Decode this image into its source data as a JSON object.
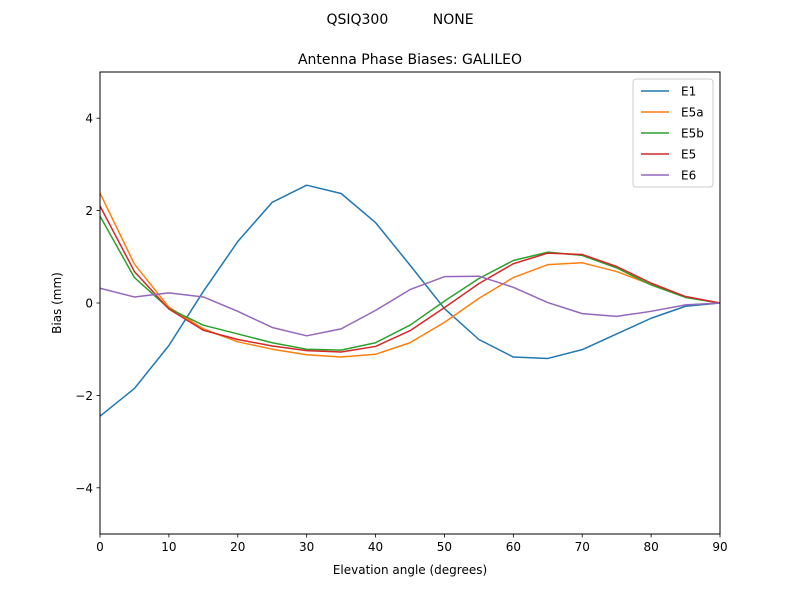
{
  "header": {
    "suptitle": "QSIQ300          NONE"
  },
  "chart_data": {
    "type": "line",
    "title": "Antenna Phase Biases: GALILEO",
    "xlabel": "Elevation angle (degrees)",
    "ylabel": "Bias (mm)",
    "xlim": [
      0,
      90
    ],
    "ylim": [
      -5,
      5
    ],
    "xticks": [
      0,
      10,
      20,
      30,
      40,
      50,
      60,
      70,
      80,
      90
    ],
    "yticks": [
      -4,
      -2,
      0,
      2,
      4
    ],
    "xtick_labels": [
      "0",
      "10",
      "20",
      "30",
      "40",
      "50",
      "60",
      "70",
      "80",
      "90"
    ],
    "ytick_labels": [
      "−4",
      "−2",
      "0",
      "2",
      "4"
    ],
    "grid": false,
    "legend_position": "top-right",
    "x": [
      0,
      5,
      10,
      15,
      20,
      25,
      30,
      35,
      40,
      45,
      50,
      55,
      60,
      65,
      70,
      75,
      80,
      85,
      90
    ],
    "series": [
      {
        "name": "E1",
        "color": "#1f77b4",
        "values": [
          -2.45,
          -1.85,
          -0.92,
          0.25,
          1.33,
          2.18,
          2.55,
          2.37,
          1.74,
          0.82,
          -0.12,
          -0.79,
          -1.17,
          -1.2,
          -1.01,
          -0.67,
          -0.33,
          -0.07,
          0.0
        ]
      },
      {
        "name": "E5a",
        "color": "#ff7f0e",
        "values": [
          2.38,
          0.84,
          -0.09,
          -0.56,
          -0.84,
          -1.0,
          -1.12,
          -1.17,
          -1.11,
          -0.86,
          -0.42,
          0.1,
          0.55,
          0.83,
          0.87,
          0.68,
          0.4,
          0.13,
          0.0
        ]
      },
      {
        "name": "E5b",
        "color": "#2ca02c",
        "values": [
          1.88,
          0.55,
          -0.12,
          -0.48,
          -0.67,
          -0.86,
          -1.0,
          -1.02,
          -0.86,
          -0.48,
          0.04,
          0.53,
          0.92,
          1.1,
          1.03,
          0.76,
          0.39,
          0.12,
          0.0
        ]
      },
      {
        "name": "E5",
        "color": "#d62728",
        "values": [
          2.1,
          0.68,
          -0.13,
          -0.59,
          -0.79,
          -0.93,
          -1.03,
          -1.06,
          -0.94,
          -0.6,
          -0.1,
          0.42,
          0.85,
          1.08,
          1.05,
          0.79,
          0.43,
          0.14,
          0.0
        ]
      },
      {
        "name": "E6",
        "color": "#9467bd",
        "values": [
          0.32,
          0.13,
          0.22,
          0.13,
          -0.18,
          -0.53,
          -0.71,
          -0.56,
          -0.16,
          0.29,
          0.57,
          0.58,
          0.34,
          0.01,
          -0.23,
          -0.29,
          -0.18,
          -0.04,
          0.0
        ]
      }
    ]
  }
}
